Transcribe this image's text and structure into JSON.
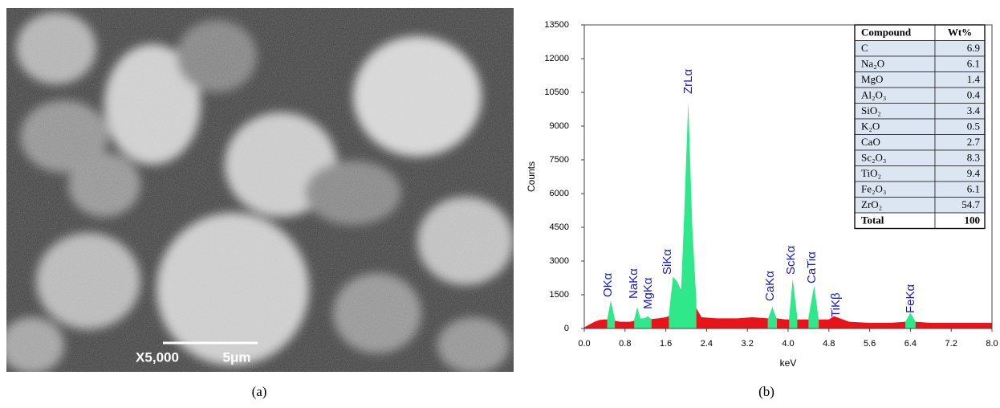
{
  "sem_image": {
    "magnification": "X5,000",
    "scale": "5μm"
  },
  "panel_labels": [
    "(a)",
    "(b)"
  ],
  "chart_data": {
    "type": "area",
    "x_label": "keV",
    "y_label": "Counts",
    "x": [
      0.0,
      0.2,
      0.3,
      0.4,
      0.45,
      0.52,
      0.6,
      0.7,
      0.9,
      0.98,
      1.04,
      1.1,
      1.18,
      1.25,
      1.32,
      1.45,
      1.6,
      1.66,
      1.74,
      1.82,
      1.9,
      1.96,
      2.04,
      2.12,
      2.2,
      2.3,
      2.6,
      3.0,
      3.3,
      3.6,
      3.69,
      3.78,
      3.95,
      4.02,
      4.09,
      4.18,
      4.3,
      4.4,
      4.51,
      4.6,
      4.8,
      4.9,
      5.2,
      5.6,
      6.0,
      6.3,
      6.4,
      6.5,
      6.8,
      7.2,
      7.6,
      8.0
    ],
    "series": [
      {
        "color": "#e8141a",
        "values": [
          50,
          300,
          380,
          400,
          400,
          350,
          350,
          300,
          300,
          350,
          400,
          400,
          400,
          420,
          420,
          450,
          500,
          550,
          600,
          1000,
          1800,
          800,
          700,
          1800,
          900,
          500,
          450,
          450,
          500,
          450,
          450,
          450,
          400,
          400,
          400,
          400,
          400,
          400,
          400,
          400,
          400,
          550,
          300,
          250,
          250,
          300,
          300,
          300,
          250,
          250,
          250,
          250
        ]
      },
      {
        "color": "#2ee88a",
        "values": [
          null,
          null,
          null,
          null,
          400,
          1250,
          400,
          null,
          null,
          400,
          950,
          450,
          450,
          550,
          400,
          null,
          null,
          600,
          2300,
          2100,
          1700,
          5000,
          10100,
          4500,
          1200,
          null,
          null,
          null,
          null,
          400,
          950,
          400,
          null,
          500,
          2200,
          500,
          null,
          500,
          1900,
          400,
          null,
          null,
          null,
          null,
          null,
          300,
          700,
          300,
          null,
          null,
          null,
          null
        ]
      }
    ],
    "annotations": [
      "OKα",
      "NaKα",
      "MgKα",
      "SiKα",
      "ZrLα",
      "CaKα",
      "ScKα",
      "CaTiα",
      "TiKβ",
      "FeKα"
    ],
    "annotation_color": "#1a1acc",
    "xlim": [
      0,
      8
    ],
    "xticks": [
      {
        "value": 0,
        "label": "0.0"
      },
      0.8,
      1.6,
      2.4,
      3.2,
      {
        "value": 4,
        "label": "4.0"
      },
      4.8,
      5.6,
      6.4,
      7.2,
      {
        "value": 8,
        "label": "8.0"
      }
    ],
    "ylim": [
      0,
      13500
    ],
    "yticks": [
      0,
      1500,
      3000,
      4500,
      6000,
      7500,
      9000,
      10500,
      12000,
      13500
    ]
  },
  "table": {
    "header": [
      "Compound",
      "Wt%"
    ],
    "rows": [
      [
        "C",
        6.9
      ],
      [
        "Na₂O",
        6.1
      ],
      [
        "MgO",
        1.4
      ],
      [
        "Al₂O₃",
        0.4
      ],
      [
        "SiO₂",
        3.4
      ],
      [
        "K₂O",
        0.5
      ],
      [
        "CaO",
        2.7
      ],
      [
        "Sc₂O₃",
        8.3
      ],
      [
        "TiO₂",
        9.4
      ],
      [
        "Fe₂O₃",
        6.1
      ],
      [
        "ZrO₂",
        54.7
      ],
      [
        "Total",
        100
      ]
    ]
  }
}
